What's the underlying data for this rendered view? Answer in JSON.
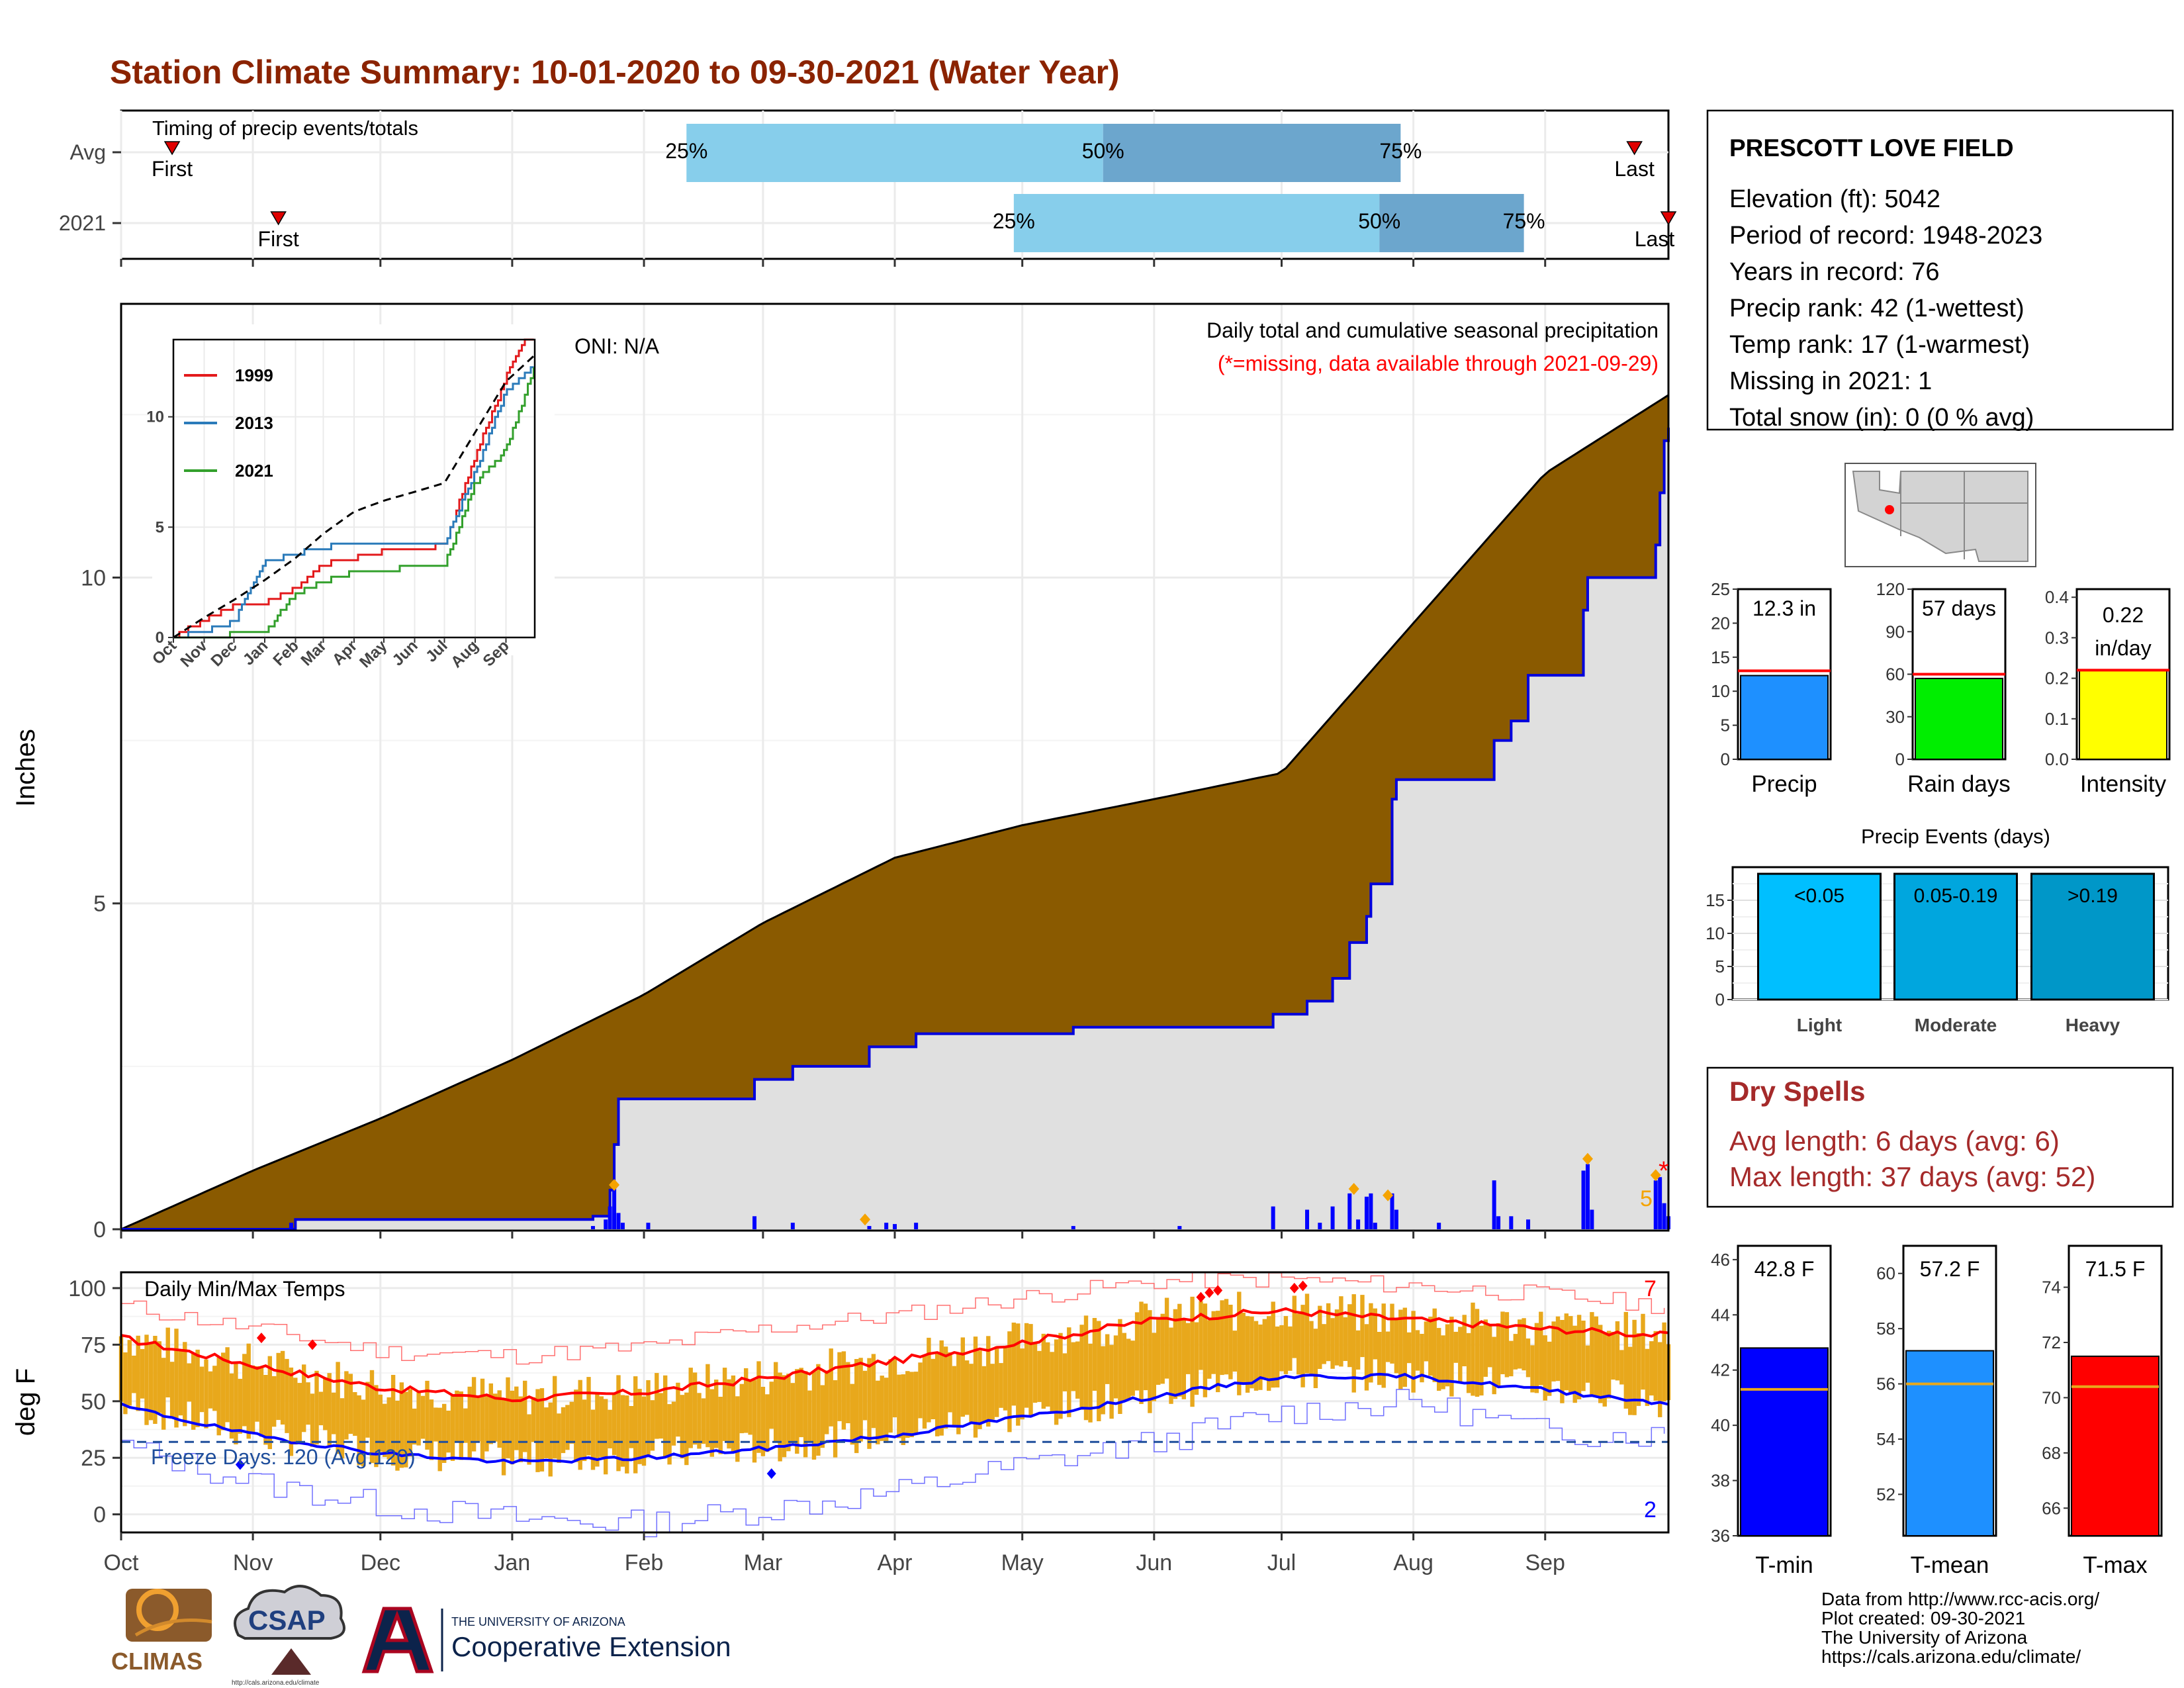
{
  "title": "Station Climate Summary: 10-01-2020 to 09-30-2021 (Water Year)",
  "timing": {
    "title": "Timing of precip events/totals",
    "rows": [
      {
        "label": "Avg",
        "first": "First",
        "last": "Last",
        "first_day": 12,
        "last_day": 356,
        "p25": 133,
        "p50": 231,
        "p75": 301
      },
      {
        "label": "2021",
        "first": "First",
        "last": "Last",
        "first_day": 37,
        "last_day": 364,
        "p25": 210,
        "p50": 296,
        "p75": 330
      }
    ],
    "pct_labels": [
      "25%",
      "50%",
      "75%"
    ]
  },
  "main": {
    "ylabel": "Inches",
    "yticks": [
      "0",
      "5",
      "10"
    ],
    "note": "Daily total and cumulative seasonal precipitation",
    "missing_note": "(*=missing, data available through 2021-09-29)",
    "oni": "ONI: N/A",
    "missing_mark": "*",
    "count_label": "5",
    "xticks": [
      "Oct",
      "Nov",
      "Dec",
      "Jan",
      "Feb",
      "Mar",
      "Apr",
      "May",
      "Jun",
      "Jul",
      "Aug",
      "Sep"
    ],
    "colors": {
      "avg_fill": "#8a5a00",
      "year_fill": "#e0e0e0",
      "year_line": "#0000dd",
      "bars": "#0000ff",
      "marker": "#f5a300"
    }
  },
  "inset": {
    "yticks": [
      "0",
      "5",
      "10"
    ],
    "xticks": [
      "Oct",
      "Nov",
      "Dec",
      "Jan",
      "Feb",
      "Mar",
      "Apr",
      "May",
      "Jun",
      "Jul",
      "Aug",
      "Sep"
    ],
    "legend": [
      {
        "name": "1999",
        "color": "#e31a1c"
      },
      {
        "name": "2013",
        "color": "#2b7bba"
      },
      {
        "name": "2021",
        "color": "#33a02c"
      }
    ]
  },
  "temps": {
    "title": "Daily Min/Max Temps",
    "ylabel": "deg F",
    "yticks": [
      "0",
      "25",
      "50",
      "75",
      "100"
    ],
    "freeze": "Freeze Days: 120 (Avg:120)",
    "count_hi": "7",
    "count_lo": "2",
    "xticks": [
      "Oct",
      "Nov",
      "Dec",
      "Jan",
      "Feb",
      "Mar",
      "Apr",
      "May",
      "Jun",
      "Jul",
      "Aug",
      "Sep"
    ],
    "colors": {
      "bars": "#e8a81c",
      "avg_max": "#ff0000",
      "avg_min": "#0000ff",
      "freeze_line": "#1f4e9c"
    }
  },
  "station": {
    "name": "PRESCOTT LOVE FIELD",
    "lines": [
      "Elevation (ft): 5042",
      "Period of record: 1948-2023",
      "Years in record: 76",
      "Precip rank: 42 (1-wettest)",
      "Temp rank: 17 (1-warmest)",
      "Missing in 2021: 1",
      "Total snow (in): 0 (0 % avg)"
    ]
  },
  "mini": [
    {
      "label": "Precip",
      "value_text": "12.3 in",
      "value": 12.3,
      "avg": 13,
      "ymax": 25,
      "yticks": [
        "0",
        "5",
        "10",
        "15",
        "20",
        "25"
      ],
      "color": "#1e90ff"
    },
    {
      "label": "Rain days",
      "value_text": "57 days",
      "value": 57,
      "avg": 60,
      "ymax": 120,
      "yticks": [
        "0",
        "30",
        "60",
        "90",
        "120"
      ],
      "color": "#00ee00"
    },
    {
      "label": "Intensity",
      "value_text": "0.22 in/day",
      "value_lines": [
        "0.22",
        "in/day"
      ],
      "value": 0.22,
      "avg": 0.22,
      "ymax": 0.42,
      "yticks": [
        "0.0",
        "0.1",
        "0.2",
        "0.3",
        "0.4"
      ],
      "color": "#ffff00"
    }
  ],
  "events": {
    "title": "Precip Events (days)",
    "yticks": [
      "0",
      "5",
      "10",
      "15"
    ],
    "bars": [
      {
        "cat": "Light",
        "label": "<0.05",
        "value": 19,
        "color": "#00bfff"
      },
      {
        "cat": "Moderate",
        "label": "0.05-0.19",
        "value": 19,
        "color": "#00a6de"
      },
      {
        "cat": "Heavy",
        "label": ">0.19",
        "value": 19,
        "color": "#0097c8"
      }
    ]
  },
  "dry": {
    "title": "Dry Spells",
    "avg": "Avg length: 6 days (avg: 6)",
    "max": "Max length: 37 days (avg: 52)"
  },
  "temp_bars": [
    {
      "label": "T-min",
      "value_text": "42.8 F",
      "value": 42.8,
      "avg": 41.3,
      "ymin": 36,
      "ymax": 46.5,
      "yticks": [
        "36",
        "38",
        "40",
        "42",
        "44",
        "46"
      ],
      "color": "#0000ff"
    },
    {
      "label": "T-mean",
      "value_text": "57.2 F",
      "value": 57.2,
      "avg": 56.0,
      "ymin": 50.5,
      "ymax": 61,
      "yticks": [
        "52",
        "54",
        "56",
        "58",
        "60"
      ],
      "color": "#1e90ff"
    },
    {
      "label": "T-max",
      "value_text": "71.5 F",
      "value": 71.5,
      "avg": 70.4,
      "ymin": 65,
      "ymax": 75.5,
      "yticks": [
        "66",
        "68",
        "70",
        "72",
        "74"
      ],
      "color": "#ff0000"
    }
  ],
  "footer": {
    "lines": [
      "Data from http://www.rcc-acis.org/",
      "Plot created: 09-30-2021",
      "The University of Arizona",
      "https://cals.arizona.edu/climate/"
    ],
    "logo_climas": "CLIMAS",
    "logo_csap": "CSAP",
    "logo_csap_url": "http://cals.arizona.edu/climate",
    "ua_small": "THE UNIVERSITY OF ARIZONA",
    "ua_big": "Cooperative Extension"
  },
  "chart_data": [
    {
      "type": "area",
      "title": "Daily total and cumulative seasonal precipitation",
      "ylabel": "Inches",
      "x": [
        "Oct",
        "Nov",
        "Dec",
        "Jan",
        "Feb",
        "Mar",
        "Apr",
        "May",
        "Jun",
        "Jul",
        "Aug",
        "Sep",
        "Sep-30"
      ],
      "ylim": [
        0,
        14.2
      ],
      "series": [
        {
          "name": "avg cumulative",
          "values": [
            0,
            0.9,
            1.7,
            2.6,
            3.6,
            4.7,
            5.7,
            6.2,
            6.6,
            7.0,
            9.3,
            11.6,
            12.8
          ]
        },
        {
          "name": "2021 cumulative",
          "values": [
            0,
            0.0,
            0.15,
            0.2,
            2.0,
            2.5,
            3.0,
            3.1,
            3.15,
            3.3,
            7.0,
            8.5,
            12.3
          ]
        }
      ],
      "daily_precip": [
        {
          "date": "2021-01-25",
          "in": 0.2
        },
        {
          "date": "2021-01-26",
          "in": 0.5
        },
        {
          "date": "2021-01-27",
          "in": 0.7
        },
        {
          "date": "2021-01-28",
          "in": 0.3
        },
        {
          "date": "2021-07-07",
          "in": 0.35
        },
        {
          "date": "2021-07-22",
          "in": 0.6
        },
        {
          "date": "2021-08-17",
          "in": 0.75
        },
        {
          "date": "2021-08-30",
          "in": 1.0
        },
        {
          "date": "2021-09-19",
          "in": 0.8
        }
      ]
    },
    {
      "type": "line",
      "title": "",
      "x": [
        "Oct",
        "Nov",
        "Dec",
        "Jan",
        "Feb",
        "Mar",
        "Apr",
        "May",
        "Jun",
        "Jul",
        "Aug",
        "Sep",
        "Sep-30"
      ],
      "ylim": [
        0,
        13.5
      ],
      "series": [
        {
          "name": "1999",
          "values": [
            0,
            0.8,
            1.4,
            1.6,
            2.2,
            3.3,
            3.6,
            3.9,
            4.0,
            4.2,
            8.2,
            11.8,
            14.5
          ]
        },
        {
          "name": "2013",
          "values": [
            0,
            0.3,
            0.7,
            3.4,
            3.8,
            4.1,
            4.2,
            4.2,
            4.2,
            4.3,
            7.5,
            11.2,
            12.3
          ]
        },
        {
          "name": "2021",
          "values": [
            0,
            0.0,
            0.15,
            0.2,
            2.0,
            2.5,
            3.0,
            3.1,
            3.15,
            3.3,
            7.0,
            8.5,
            12.3
          ]
        },
        {
          "name": "avg",
          "values": [
            0,
            0.9,
            1.7,
            2.6,
            3.6,
            4.7,
            5.7,
            6.2,
            6.6,
            7.0,
            9.3,
            11.6,
            12.8
          ]
        }
      ]
    },
    {
      "type": "bar",
      "title": "Daily Min/Max Temps",
      "ylabel": "deg F",
      "x": [
        "Oct",
        "Nov",
        "Dec",
        "Jan",
        "Feb",
        "Mar",
        "Apr",
        "May",
        "Jun",
        "Jul",
        "Aug",
        "Sep",
        "Sep-30"
      ],
      "ylim": [
        -8,
        107
      ],
      "series": [
        {
          "name": "avg max",
          "values": [
            78,
            66,
            56,
            51,
            54,
            60,
            68,
            76,
            86,
            90,
            86,
            82,
            79
          ]
        },
        {
          "name": "avg min",
          "values": [
            48,
            35,
            27,
            23,
            25,
            29,
            35,
            43,
            52,
            61,
            61,
            55,
            49
          ]
        },
        {
          "name": "record max",
          "values": [
            92,
            82,
            72,
            70,
            74,
            82,
            88,
            96,
            103,
            104,
            101,
            97,
            92
          ]
        },
        {
          "name": "record min",
          "values": [
            30,
            14,
            4,
            -2,
            -4,
            2,
            10,
            22,
            32,
            45,
            50,
            36,
            35
          ]
        }
      ],
      "freeze_threshold": 32
    }
  ]
}
